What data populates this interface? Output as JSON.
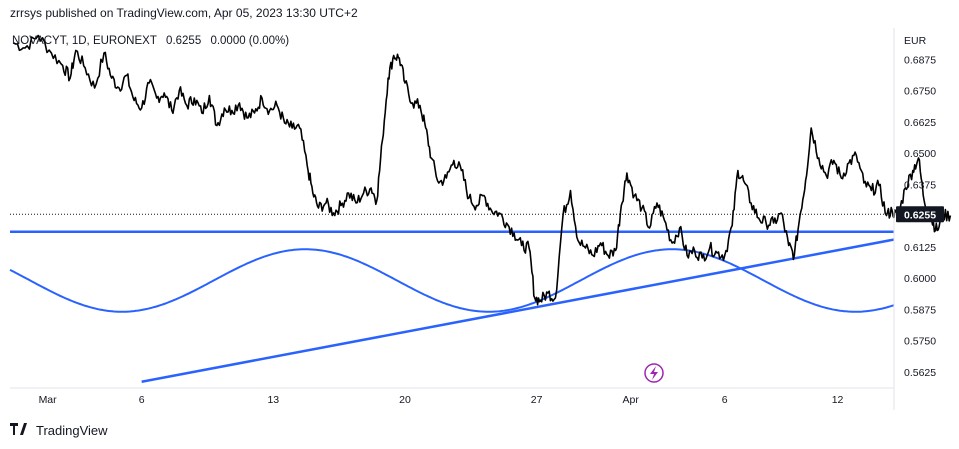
{
  "header": {
    "published": "zrrsys published on TradingView.com, Apr 05, 2023 13:30 UTC+2"
  },
  "symbol": {
    "name": "NOVACYT, 1D, EURONEXT",
    "price": "0.6255",
    "change": "0.0000 (0.00%)"
  },
  "footer": {
    "brand": "TradingView",
    "logo": "tv-logo-icon"
  },
  "colors": {
    "price_line": "#000000",
    "drawing": "#2962ff",
    "event_icon": "#9c27b0",
    "grid": "#e0e3eb"
  },
  "chart_data": {
    "type": "line",
    "currency_label": "EUR",
    "last_price_label": "0.6255",
    "y_ticks": [
      "0.6875",
      "0.6750",
      "0.6625",
      "0.6500",
      "0.6375",
      "0.6125",
      "0.6000",
      "0.5875",
      "0.5750",
      "0.5625"
    ],
    "y_range": [
      0.556,
      0.7
    ],
    "x_ticks": [
      "Mar",
      "6",
      "13",
      "20",
      "27",
      "Apr",
      "6",
      "12"
    ],
    "x_tick_days": [
      0,
      5,
      12,
      19,
      26,
      31,
      36,
      42
    ],
    "x_range_days": [
      -2,
      45
    ],
    "series": [
      {
        "points": [
          [
            -1.8,
            0.694
          ],
          [
            -1.2,
            0.692
          ],
          [
            -0.5,
            0.697
          ],
          [
            0.2,
            0.69
          ],
          [
            0.8,
            0.685
          ],
          [
            1.2,
            0.68
          ],
          [
            1.5,
            0.691
          ],
          [
            2.0,
            0.684
          ],
          [
            2.5,
            0.676
          ],
          [
            3.0,
            0.69
          ],
          [
            3.4,
            0.68
          ],
          [
            3.8,
            0.676
          ],
          [
            4.2,
            0.681
          ],
          [
            4.6,
            0.671
          ],
          [
            5.0,
            0.668
          ],
          [
            5.4,
            0.678
          ],
          [
            5.8,
            0.672
          ],
          [
            6.2,
            0.674
          ],
          [
            6.6,
            0.667
          ],
          [
            7.0,
            0.675
          ],
          [
            7.4,
            0.669
          ],
          [
            7.8,
            0.672
          ],
          [
            8.2,
            0.666
          ],
          [
            8.6,
            0.673
          ],
          [
            9.0,
            0.661
          ],
          [
            9.4,
            0.668
          ],
          [
            9.8,
            0.667
          ],
          [
            10.2,
            0.67
          ],
          [
            10.6,
            0.664
          ],
          [
            11.0,
            0.666
          ],
          [
            11.4,
            0.672
          ],
          [
            11.8,
            0.667
          ],
          [
            12.2,
            0.669
          ],
          [
            12.6,
            0.662
          ],
          [
            13.0,
            0.66
          ],
          [
            13.4,
            0.66
          ],
          [
            13.8,
            0.645
          ],
          [
            14.1,
            0.634
          ],
          [
            14.4,
            0.628
          ],
          [
            14.8,
            0.63
          ],
          [
            15.2,
            0.626
          ],
          [
            15.6,
            0.629
          ],
          [
            16.0,
            0.634
          ],
          [
            16.4,
            0.63
          ],
          [
            16.8,
            0.634
          ],
          [
            17.2,
            0.636
          ],
          [
            17.5,
            0.631
          ],
          [
            17.8,
            0.655
          ],
          [
            18.1,
            0.68
          ],
          [
            18.4,
            0.689
          ],
          [
            18.7,
            0.688
          ],
          [
            19.0,
            0.678
          ],
          [
            19.4,
            0.67
          ],
          [
            19.8,
            0.669
          ],
          [
            20.1,
            0.66
          ],
          [
            20.4,
            0.648
          ],
          [
            20.8,
            0.638
          ],
          [
            21.2,
            0.64
          ],
          [
            21.6,
            0.647
          ],
          [
            22.0,
            0.643
          ],
          [
            22.4,
            0.632
          ],
          [
            22.8,
            0.629
          ],
          [
            23.2,
            0.633
          ],
          [
            23.6,
            0.627
          ],
          [
            24.0,
            0.626
          ],
          [
            24.4,
            0.622
          ],
          [
            24.8,
            0.618
          ],
          [
            25.2,
            0.613
          ],
          [
            25.6,
            0.612
          ],
          [
            25.9,
            0.592
          ],
          [
            26.2,
            0.591
          ],
          [
            26.6,
            0.594
          ],
          [
            27.0,
            0.592
          ],
          [
            27.4,
            0.625
          ],
          [
            27.8,
            0.635
          ],
          [
            28.2,
            0.615
          ],
          [
            28.6,
            0.612
          ],
          [
            29.0,
            0.609
          ],
          [
            29.4,
            0.614
          ],
          [
            29.8,
            0.609
          ],
          [
            30.2,
            0.611
          ],
          [
            30.5,
            0.629
          ],
          [
            30.8,
            0.642
          ],
          [
            31.2,
            0.633
          ],
          [
            31.6,
            0.628
          ],
          [
            32.0,
            0.62
          ],
          [
            32.4,
            0.63
          ],
          [
            32.8,
            0.623
          ],
          [
            33.2,
            0.614
          ],
          [
            33.6,
            0.62
          ],
          [
            34.0,
            0.609
          ],
          [
            34.4,
            0.611
          ],
          [
            34.8,
            0.608
          ],
          [
            35.2,
            0.612
          ],
          [
            35.6,
            0.61
          ],
          [
            36.0,
            0.609
          ],
          [
            36.4,
            0.621
          ],
          [
            36.7,
            0.643
          ],
          [
            37.0,
            0.639
          ],
          [
            37.4,
            0.63
          ],
          [
            37.8,
            0.624
          ],
          [
            38.2,
            0.622
          ],
          [
            38.6,
            0.622
          ],
          [
            39.0,
            0.626
          ],
          [
            39.4,
            0.613
          ],
          [
            39.7,
            0.609
          ],
          [
            40.0,
            0.625
          ],
          [
            40.3,
            0.639
          ],
          [
            40.6,
            0.66
          ],
          [
            41.0,
            0.648
          ],
          [
            41.4,
            0.641
          ],
          [
            41.8,
            0.647
          ],
          [
            42.2,
            0.64
          ],
          [
            42.6,
            0.646
          ],
          [
            43.0,
            0.649
          ],
          [
            43.4,
            0.638
          ],
          [
            43.8,
            0.635
          ],
          [
            44.2,
            0.637
          ],
          [
            44.6,
            0.625
          ],
          [
            44.9,
            0.627
          ],
          [
            45.2,
            0.624
          ],
          [
            45.6,
            0.636
          ],
          [
            46.0,
            0.643
          ],
          [
            46.3,
            0.648
          ],
          [
            46.6,
            0.631
          ],
          [
            47.0,
            0.623
          ],
          [
            47.3,
            0.619
          ],
          [
            47.6,
            0.625
          ],
          [
            48.0,
            0.625
          ]
        ]
      }
    ],
    "drawings": {
      "horizontal_line": 0.6185,
      "trend_line": [
        [
          5,
          0.5585
        ],
        [
          69,
          0.6495
        ]
      ],
      "sine_wave": {
        "center": 0.599,
        "amplitude": 0.0125,
        "period_days": 19.5,
        "peak_day": 13.7
      }
    }
  }
}
